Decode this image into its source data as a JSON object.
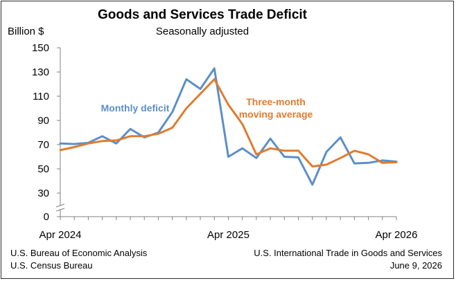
{
  "chart_data": {
    "type": "line",
    "title": "Goods and Services Trade Deficit",
    "subtitle": "Seasonally adjusted",
    "ylabel": "Billion $",
    "ylim": [
      0,
      150
    ],
    "yticks": [
      0,
      30,
      50,
      70,
      90,
      110,
      130,
      150
    ],
    "axis_break": true,
    "x_tick_labels": [
      "Apr 2024",
      "Apr 2025",
      "Apr 2026"
    ],
    "x": [
      "Apr 2024",
      "May 2024",
      "Jun 2024",
      "Jul 2024",
      "Aug 2024",
      "Sep 2024",
      "Oct 2024",
      "Nov 2024",
      "Dec 2024",
      "Jan 2025",
      "Feb 2025",
      "Mar 2025",
      "Apr 2025",
      "May 2025",
      "Jun 2025",
      "Jul 2025",
      "Aug 2025",
      "Sep 2025",
      "Oct 2025",
      "Nov 2025",
      "Dec 2025",
      "Jan 2026",
      "Feb 2026",
      "Mar 2026",
      "Apr 2026"
    ],
    "series": [
      {
        "name": "Monthly deficit",
        "color": "#5b8fc7",
        "values": [
          71,
          70.5,
          71.5,
          77,
          71,
          83,
          76,
          80,
          97,
          124,
          116,
          133,
          60,
          67,
          59,
          75,
          60,
          59.5,
          37,
          64,
          76,
          54.5,
          55,
          57,
          56
        ]
      },
      {
        "name": "Three-month moving average",
        "color": "#e07b2e",
        "values": [
          65.5,
          68,
          71,
          73,
          73.5,
          77,
          77,
          79,
          84,
          100,
          112,
          124,
          103,
          87,
          62,
          67,
          65,
          65,
          52,
          53.5,
          59,
          65,
          62,
          55,
          55.5
        ]
      }
    ],
    "annotations": [
      {
        "series": "Monthly deficit",
        "lines": [
          "Monthly deficit"
        ]
      },
      {
        "series": "Three-month moving average",
        "lines": [
          "Three-month",
          "moving average"
        ]
      }
    ]
  },
  "footer": {
    "left": [
      "U.S. Bureau of Economic Analysis",
      "U.S. Census Bureau"
    ],
    "right": [
      "U.S. International Trade in Goods and Services",
      "June 9, 2026"
    ]
  }
}
